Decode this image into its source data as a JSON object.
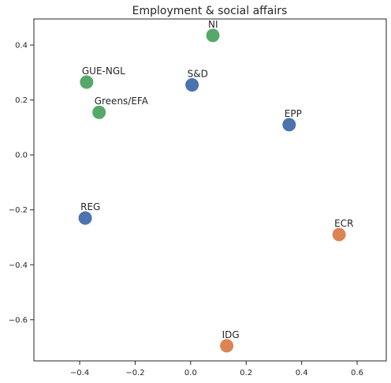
{
  "chart_data": {
    "type": "scatter",
    "title": "Employment & social affairs",
    "xlabel": "",
    "ylabel": "",
    "xlim": [
      -0.565,
      0.705
    ],
    "ylim": [
      -0.75,
      0.495
    ],
    "grid": false,
    "xticks": [
      -0.4,
      -0.2,
      0.0,
      0.2,
      0.4,
      0.6
    ],
    "xtick_labels": [
      "−0.4",
      "−0.2",
      "0.0",
      "0.2",
      "0.4",
      "0.6"
    ],
    "yticks": [
      -0.6,
      -0.4,
      -0.2,
      0.0,
      0.2,
      0.4
    ],
    "ytick_labels": [
      "−0.6",
      "−0.4",
      "−0.2",
      "0.0",
      "0.2",
      "0.4"
    ],
    "colors": {
      "blue": "#4c72b0",
      "orange": "#dd8452",
      "green": "#55a868"
    },
    "points": [
      {
        "label": "NI",
        "x": 0.08,
        "y": 0.435,
        "color": "#55a868"
      },
      {
        "label": "GUE-NGL",
        "x": -0.375,
        "y": 0.265,
        "color": "#55a868"
      },
      {
        "label": "Greens/EFA",
        "x": -0.33,
        "y": 0.155,
        "color": "#55a868"
      },
      {
        "label": "S&D",
        "x": 0.005,
        "y": 0.255,
        "color": "#4c72b0"
      },
      {
        "label": "EPP",
        "x": 0.355,
        "y": 0.11,
        "color": "#4c72b0"
      },
      {
        "label": "REG",
        "x": -0.38,
        "y": -0.23,
        "color": "#4c72b0"
      },
      {
        "label": "ECR",
        "x": 0.535,
        "y": -0.29,
        "color": "#dd8452"
      },
      {
        "label": "IDG",
        "x": 0.13,
        "y": -0.695,
        "color": "#dd8452"
      }
    ]
  }
}
